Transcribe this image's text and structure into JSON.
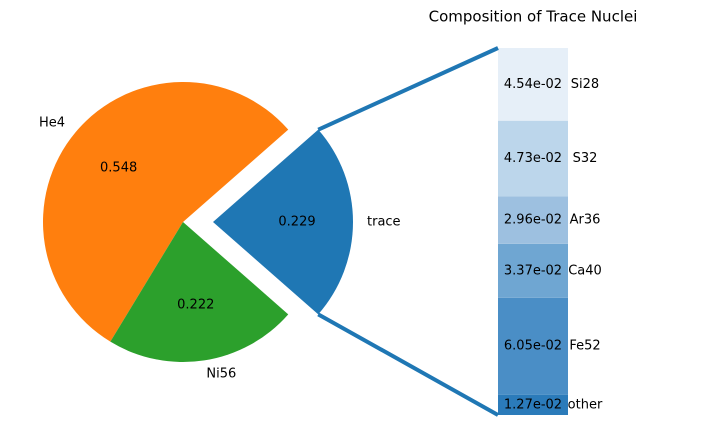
{
  "chart_data": [
    {
      "type": "pie",
      "categories": [
        "trace",
        "He4",
        "Ni56"
      ],
      "values": [
        0.229,
        0.548,
        0.222
      ],
      "colors": [
        "#1f77b4",
        "#ff7f0e",
        "#2ca02c"
      ]
    },
    {
      "type": "bar",
      "title": "Composition of Trace Nuclei",
      "categories": [
        "Si28",
        "S32",
        "Ar36",
        "Ca40",
        "Fe52",
        "other"
      ],
      "values": [
        0.0454,
        0.0473,
        0.0296,
        0.0337,
        0.0605,
        0.0127
      ],
      "value_labels": [
        "4.54e-02",
        "4.73e-02",
        "2.96e-02",
        "3.37e-02",
        "6.05e-02",
        "1.27e-02"
      ],
      "colors": [
        "#e6eff8",
        "#bcd6eb",
        "#9dc0e0",
        "#6fa6d2",
        "#4a8ec6",
        "#2b7bba"
      ]
    }
  ]
}
